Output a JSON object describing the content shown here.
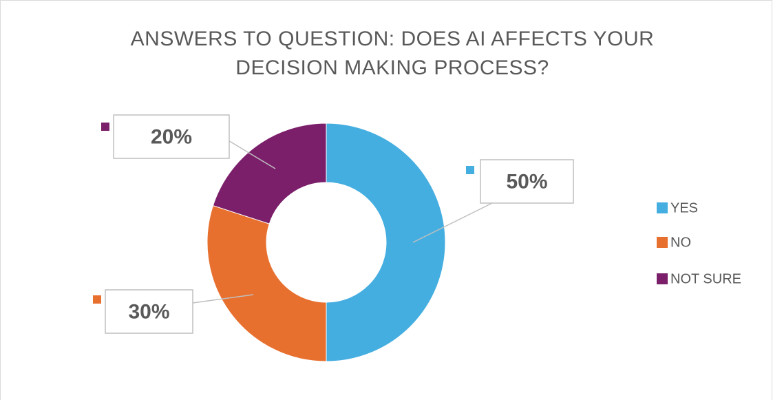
{
  "chart_data": {
    "type": "doughnut",
    "title": "ANSWERS TO QUESTION: DOES AI AFFECTS YOUR DECISION MAKING PROCESS?",
    "categories": [
      "YES",
      "NO",
      "NOT SURE"
    ],
    "values": [
      50,
      30,
      20
    ],
    "value_labels": [
      "50%",
      "30%",
      "20%"
    ],
    "colors": [
      "#45aee0",
      "#e8702f",
      "#7b1f6b"
    ],
    "legend": "right"
  }
}
